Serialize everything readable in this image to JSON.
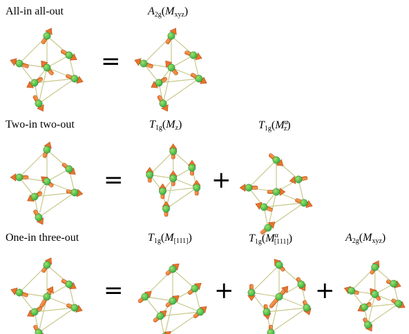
{
  "rows": [
    {
      "label": "All-in all-out",
      "terms": [
        {
          "sym": "A",
          "sub": "2g",
          "M": "M",
          "msub": "xyz",
          "msup": ""
        }
      ]
    },
    {
      "label": "Two-in two-out",
      "terms": [
        {
          "sym": "T",
          "sub": "1g",
          "M": "M",
          "msub": "z",
          "msup": ""
        },
        {
          "sym": "T",
          "sub": "1g",
          "M": "M",
          "msub": "z",
          "msup": "α"
        }
      ]
    },
    {
      "label": "One-in three-out",
      "terms": [
        {
          "sym": "T",
          "sub": "1g",
          "M": "M",
          "msub": "[111]",
          "msup": ""
        },
        {
          "sym": "T",
          "sub": "1g",
          "M": "M",
          "msub": "[111]",
          "msup": "α"
        },
        {
          "sym": "A",
          "sub": "2g",
          "M": "M",
          "msub": "xyz",
          "msup": ""
        }
      ]
    }
  ],
  "operators": {
    "equals": "=",
    "plus": "+"
  },
  "colors": {
    "atom": "#3cb043",
    "atom_highlight": "#9be36d",
    "arrow": "#e8742a",
    "arrow_dark": "#a8400e",
    "bond": "#c8c88a"
  }
}
